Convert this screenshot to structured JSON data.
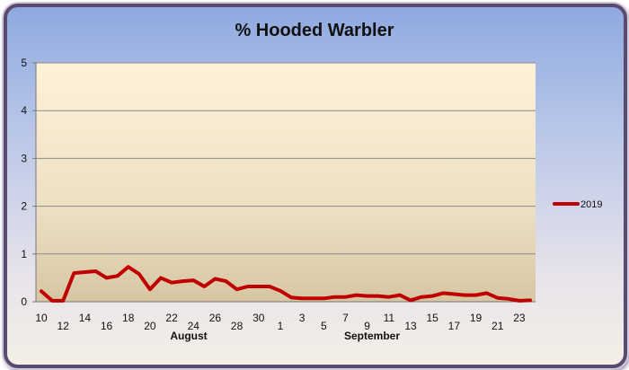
{
  "chart_data": {
    "type": "line",
    "title": "% Hooded Warbler",
    "xlabel": "",
    "ylabel": "",
    "ylim": [
      0,
      5
    ],
    "y_ticks": [
      "0",
      "1",
      "2",
      "3",
      "4",
      "5"
    ],
    "x": [
      "Aug 10",
      "Aug 11",
      "Aug 12",
      "Aug 13",
      "Aug 14",
      "Aug 15",
      "Aug 16",
      "Aug 17",
      "Aug 18",
      "Aug 19",
      "Aug 20",
      "Aug 21",
      "Aug 22",
      "Aug 23",
      "Aug 24",
      "Aug 25",
      "Aug 26",
      "Aug 27",
      "Aug 28",
      "Aug 29",
      "Aug 30",
      "Aug 31",
      "Sep 1",
      "Sep 2",
      "Sep 3",
      "Sep 4",
      "Sep 5",
      "Sep 6",
      "Sep 7",
      "Sep 8",
      "Sep 9",
      "Sep 10",
      "Sep 11",
      "Sep 12",
      "Sep 13",
      "Sep 14",
      "Sep 15",
      "Sep 16",
      "Sep 17",
      "Sep 18",
      "Sep 19",
      "Sep 20",
      "Sep 21",
      "Sep 22",
      "Sep 23",
      "Sep 24"
    ],
    "x_tick_labels": [
      "10",
      "12",
      "14",
      "16",
      "18",
      "20",
      "22",
      "24",
      "26",
      "28",
      "30",
      "1",
      "3",
      "5",
      "7",
      "9",
      "11",
      "13",
      "15",
      "17",
      "19",
      "21",
      "23"
    ],
    "month_labels": [
      "August",
      "September"
    ],
    "grid": true,
    "legend_position": "right",
    "series": [
      {
        "name": "2019",
        "color": "#c00000",
        "values": [
          0.22,
          0.02,
          0.02,
          0.6,
          0.62,
          0.64,
          0.5,
          0.54,
          0.73,
          0.58,
          0.26,
          0.5,
          0.4,
          0.43,
          0.45,
          0.32,
          0.48,
          0.43,
          0.26,
          0.32,
          0.32,
          0.32,
          0.23,
          0.09,
          0.07,
          0.07,
          0.07,
          0.1,
          0.1,
          0.14,
          0.12,
          0.12,
          0.1,
          0.14,
          0.03,
          0.1,
          0.12,
          0.18,
          0.16,
          0.14,
          0.14,
          0.18,
          0.08,
          0.06,
          0.02,
          0.03
        ]
      }
    ]
  }
}
